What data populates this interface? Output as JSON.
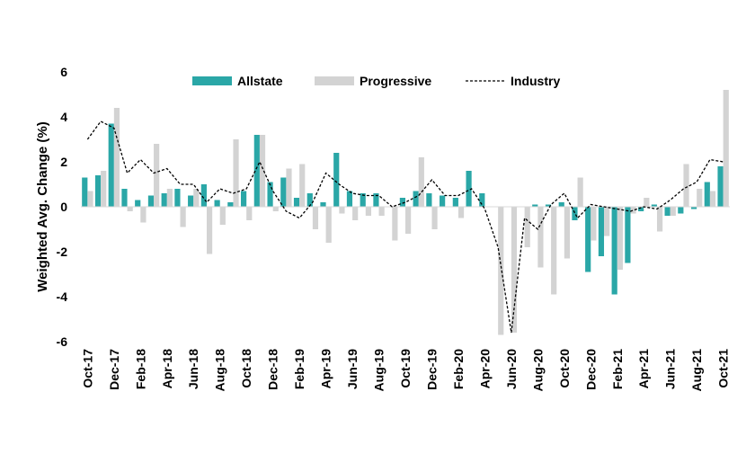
{
  "chart_data": {
    "type": "bar",
    "ylabel": "Weighted Avg. Change (%)",
    "ylim": [
      -6,
      6
    ],
    "yticks": [
      6,
      4,
      2,
      0,
      -2,
      -4,
      -6
    ],
    "grid": false,
    "legend_position": "top",
    "x": [
      "Oct-17",
      "Nov-17",
      "Dec-17",
      "Jan-18",
      "Feb-18",
      "Mar-18",
      "Apr-18",
      "May-18",
      "Jun-18",
      "Jul-18",
      "Aug-18",
      "Sep-18",
      "Oct-18",
      "Nov-18",
      "Dec-18",
      "Jan-19",
      "Feb-19",
      "Mar-19",
      "Apr-19",
      "May-19",
      "Jun-19",
      "Jul-19",
      "Aug-19",
      "Sep-19",
      "Oct-19",
      "Nov-19",
      "Dec-19",
      "Jan-20",
      "Feb-20",
      "Mar-20",
      "Apr-20",
      "May-20",
      "Jun-20",
      "Jul-20",
      "Aug-20",
      "Sep-20",
      "Oct-20",
      "Nov-20",
      "Dec-20",
      "Jan-21",
      "Feb-21",
      "Mar-21",
      "Apr-21",
      "May-21",
      "Jun-21",
      "Jul-21",
      "Aug-21",
      "Sep-21",
      "Oct-21"
    ],
    "x_tick_labels": [
      "Oct-17",
      "Dec-17",
      "Feb-18",
      "Apr-18",
      "Jun-18",
      "Aug-18",
      "Oct-18",
      "Dec-18",
      "Feb-19",
      "Apr-19",
      "Jun-19",
      "Aug-19",
      "Oct-19",
      "Dec-19",
      "Feb-20",
      "Apr-20",
      "Jun-20",
      "Aug-20",
      "Oct-20",
      "Dec-20",
      "Feb-21",
      "Apr-21",
      "Jun-21",
      "Aug-21",
      "Oct-21"
    ],
    "series": [
      {
        "name": "Allstate",
        "type": "bar",
        "color": "#2aa7a7",
        "values": [
          1.3,
          1.4,
          3.7,
          0.8,
          0.3,
          0.5,
          0.6,
          0.8,
          0.5,
          1.0,
          0.3,
          0.2,
          0.7,
          3.2,
          1.1,
          1.3,
          0.4,
          0.6,
          0.2,
          2.4,
          0.7,
          0.6,
          0.6,
          0.0,
          0.4,
          0.7,
          0.6,
          0.5,
          0.4,
          1.6,
          0.6,
          0.0,
          0.0,
          0.0,
          0.1,
          0.1,
          0.2,
          -0.6,
          -2.9,
          -2.2,
          -3.9,
          -2.5,
          -0.2,
          0.1,
          -0.4,
          -0.3,
          -0.1,
          1.1,
          1.8
        ]
      },
      {
        "name": "Progressive",
        "type": "bar",
        "color": "#d3d3d3",
        "values": [
          0.7,
          1.6,
          4.4,
          -0.2,
          -0.7,
          2.8,
          0.8,
          -0.9,
          0.8,
          -2.1,
          -0.8,
          3.0,
          -0.6,
          3.2,
          -0.2,
          1.7,
          1.9,
          -1.0,
          -1.6,
          -0.3,
          -0.6,
          -0.4,
          -0.4,
          -1.5,
          -1.2,
          2.2,
          -1.0,
          0.0,
          -0.5,
          0.0,
          0.0,
          -5.7,
          -5.6,
          -1.8,
          -2.7,
          -3.9,
          -2.3,
          1.3,
          -1.5,
          -1.3,
          -2.8,
          -0.3,
          0.4,
          -1.1,
          -0.4,
          1.9,
          0.8,
          0.7,
          5.2
        ]
      },
      {
        "name": "Industry",
        "type": "line",
        "color": "#000000",
        "values": [
          3.0,
          3.8,
          3.5,
          1.5,
          2.1,
          1.5,
          1.7,
          1.0,
          1.0,
          0.2,
          0.8,
          0.6,
          0.8,
          2.0,
          0.7,
          -0.2,
          -0.5,
          0.2,
          1.5,
          1.0,
          0.6,
          0.5,
          0.5,
          0.0,
          0.2,
          0.5,
          1.2,
          0.5,
          0.5,
          0.8,
          -0.1,
          -1.8,
          -5.6,
          -0.5,
          -1.0,
          0.1,
          0.6,
          -0.5,
          0.1,
          0.0,
          -0.1,
          -0.2,
          0.0,
          -0.1,
          0.3,
          0.8,
          1.1,
          2.1,
          2.0
        ]
      }
    ]
  }
}
